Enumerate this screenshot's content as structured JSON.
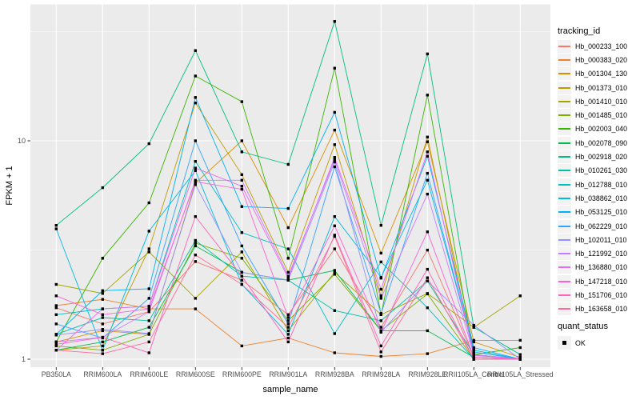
{
  "chart_data": {
    "type": "line",
    "xlabel": "sample_name",
    "ylabel": "FPKM + 1",
    "y_scale": "log10",
    "y_ticks": [
      "1",
      "10"
    ],
    "y_minor_breaks": [
      3.162,
      31.62
    ],
    "ylim": [
      1,
      42
    ],
    "grid": "white-on-grey",
    "panel_bg": "#EBEBEB",
    "grid_color": "#FFFFFF",
    "tick_label_color": "#4D4D4D",
    "point_shape": "filled-square",
    "point_color": "#000000",
    "legend_position": "right",
    "x_categories": [
      "PB350LA",
      "RRIM600LA",
      "RRIM600LE",
      "RRIM600SE",
      "RRIM600PE",
      "RRIM901LA",
      "RRIM928BA",
      "RRIM928LA",
      "RRIM928LE",
      "RRII105LA_Control",
      "RRII105LA_Stressed"
    ],
    "series": [
      {
        "name": "Hb_000233_100",
        "color": "#F8766D",
        "values": [
          1.72,
          1.45,
          1.65,
          2.8,
          2.3,
          1.6,
          3.2,
          1.4,
          3.16,
          1.02,
          1.0
        ]
      },
      {
        "name": "Hb_000383_020",
        "color": "#EA8331",
        "values": [
          1.76,
          1.88,
          1.7,
          1.7,
          1.15,
          1.25,
          1.07,
          1.03,
          1.06,
          1.22,
          1.22
        ]
      },
      {
        "name": "Hb_001304_130",
        "color": "#D89000",
        "values": [
          1.2,
          1.35,
          1.3,
          6.4,
          10.0,
          4.0,
          11.2,
          3.06,
          9.9,
          1.2,
          1.02
        ]
      },
      {
        "name": "Hb_001373_010",
        "color": "#C09B00",
        "values": [
          1.1,
          1.15,
          3.2,
          14.9,
          7.0,
          2.5,
          9.6,
          1.95,
          10.4,
          1.05,
          1.0
        ]
      },
      {
        "name": "Hb_001410_010",
        "color": "#A3A500",
        "values": [
          2.2,
          2.0,
          3.1,
          1.9,
          3.1,
          1.35,
          2.5,
          1.6,
          2.0,
          1.4,
          1.95
        ]
      },
      {
        "name": "Hb_001485_010",
        "color": "#7CAE00",
        "values": [
          1.15,
          1.1,
          1.3,
          3.4,
          2.9,
          1.5,
          2.45,
          1.35,
          1.99,
          1.0,
          1.0
        ]
      },
      {
        "name": "Hb_002003_040",
        "color": "#39B600",
        "values": [
          1.2,
          2.9,
          5.2,
          19.8,
          15.1,
          2.9,
          21.5,
          1.6,
          16.2,
          1.05,
          1.13
        ]
      },
      {
        "name": "Hb_002078_090",
        "color": "#00BB4E",
        "values": [
          1.1,
          1.2,
          1.4,
          3.3,
          2.5,
          2.3,
          2.55,
          1.35,
          1.35,
          1.02,
          1.0
        ]
      },
      {
        "name": "Hb_002918_020",
        "color": "#00BF7D",
        "values": [
          4.1,
          6.1,
          9.7,
          25.9,
          8.9,
          7.8,
          35.2,
          4.1,
          25.0,
          1.4,
          1.05
        ]
      },
      {
        "name": "Hb_010261_030",
        "color": "#00C1A3",
        "values": [
          1.3,
          1.55,
          1.5,
          3.5,
          2.4,
          2.3,
          1.67,
          1.5,
          2.28,
          1.05,
          1.0
        ]
      },
      {
        "name": "Hb_012788_010",
        "color": "#00BFC4",
        "values": [
          1.6,
          1.7,
          1.75,
          8.05,
          3.8,
          3.2,
          1.31,
          2.79,
          1.72,
          1.0,
          1.0
        ]
      },
      {
        "name": "Hb_038862_010",
        "color": "#00BAE0",
        "values": [
          3.95,
          1.1,
          3.86,
          7.3,
          2.2,
          1.3,
          4.5,
          2.37,
          6.6,
          1.1,
          1.0
        ]
      },
      {
        "name": "Hb_053125_010",
        "color": "#00B0F6",
        "values": [
          1.3,
          2.06,
          2.1,
          15.8,
          5.0,
          4.9,
          13.5,
          2.35,
          8.5,
          1.13,
          1.0
        ]
      },
      {
        "name": "Hb_062229_010",
        "color": "#35A2FF",
        "values": [
          1.45,
          1.25,
          1.9,
          10.0,
          3.3,
          1.45,
          7.6,
          1.62,
          7.1,
          1.08,
          1.0
        ]
      },
      {
        "name": "Hb_102011_010",
        "color": "#9590FF",
        "values": [
          1.29,
          1.37,
          1.31,
          6.3,
          2.5,
          2.3,
          8.0,
          1.33,
          2.28,
          1.43,
          1.0
        ]
      },
      {
        "name": "Hb_121992_010",
        "color": "#C77CFF",
        "values": [
          1.2,
          1.26,
          1.65,
          6.6,
          6.6,
          2.4,
          8.2,
          1.9,
          5.7,
          1.05,
          1.0
        ]
      },
      {
        "name": "Hb_136880_010",
        "color": "#E76BF3",
        "values": [
          1.1,
          1.7,
          1.75,
          7.5,
          6.2,
          2.35,
          8.4,
          2.09,
          8.9,
          1.04,
          1.0
        ]
      },
      {
        "name": "Hb_147218_010",
        "color": "#FA62DB",
        "values": [
          1.95,
          1.6,
          1.7,
          6.5,
          6.0,
          1.55,
          4.08,
          1.33,
          3.83,
          1.02,
          1.0
        ]
      },
      {
        "name": "Hb_151706_010",
        "color": "#FF62BC",
        "values": [
          1.17,
          1.26,
          1.07,
          4.5,
          2.4,
          1.2,
          3.7,
          1.15,
          2.58,
          1.0,
          1.0
        ]
      },
      {
        "name": "Hb_163658_010",
        "color": "#FF6A98",
        "values": [
          1.1,
          1.06,
          1.2,
          3.0,
          2.2,
          1.4,
          3.65,
          1.08,
          2.36,
          1.0,
          1.0
        ]
      }
    ]
  },
  "legend": {
    "tracking_title": "tracking_id",
    "quant_title": "quant_status",
    "quant_items": [
      {
        "label": "OK"
      }
    ]
  }
}
